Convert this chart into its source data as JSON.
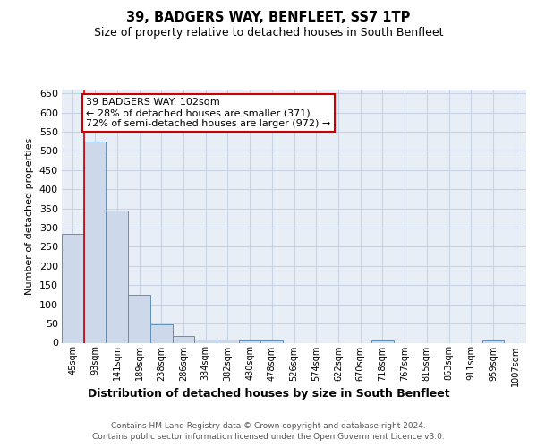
{
  "title": "39, BADGERS WAY, BENFLEET, SS7 1TP",
  "subtitle": "Size of property relative to detached houses in South Benfleet",
  "xlabel": "Distribution of detached houses by size in South Benfleet",
  "ylabel": "Number of detached properties",
  "bar_color": "#cdd9ea",
  "bar_edge_color": "#6090bb",
  "categories": [
    "45sqm",
    "93sqm",
    "141sqm",
    "189sqm",
    "238sqm",
    "286sqm",
    "334sqm",
    "382sqm",
    "430sqm",
    "478sqm",
    "526sqm",
    "574sqm",
    "622sqm",
    "670sqm",
    "718sqm",
    "767sqm",
    "815sqm",
    "863sqm",
    "911sqm",
    "959sqm",
    "1007sqm"
  ],
  "values": [
    283,
    525,
    345,
    124,
    48,
    18,
    8,
    8,
    5,
    5,
    0,
    0,
    0,
    0,
    5,
    0,
    0,
    0,
    0,
    5,
    0
  ],
  "ylim": [
    0,
    660
  ],
  "yticks": [
    0,
    50,
    100,
    150,
    200,
    250,
    300,
    350,
    400,
    450,
    500,
    550,
    600,
    650
  ],
  "property_line_x": 0.5,
  "annotation_text": "39 BADGERS WAY: 102sqm\n← 28% of detached houses are smaller (371)\n72% of semi-detached houses are larger (972) →",
  "annotation_box_facecolor": "#ffffff",
  "annotation_box_edgecolor": "#cc0000",
  "grid_color": "#c8d4e4",
  "background_color": "#e8eef6",
  "footer_line1": "Contains HM Land Registry data © Crown copyright and database right 2024.",
  "footer_line2": "Contains public sector information licensed under the Open Government Licence v3.0."
}
